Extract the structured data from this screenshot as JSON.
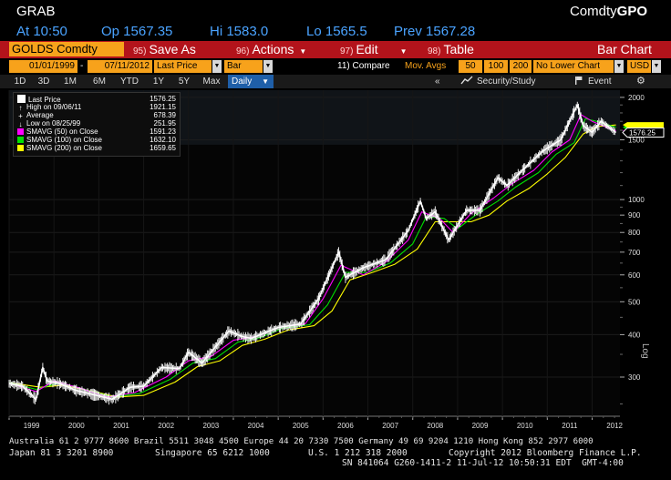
{
  "header": {
    "screen_code": "GRAB",
    "brand_plain": "Comdty",
    "brand_bold": "GPO",
    "quote": {
      "time": "At 10:50",
      "open": "Op 1567.35",
      "high": "Hi 1583.0",
      "low": "Lo 1565.5",
      "prev": "Prev 1567.28"
    }
  },
  "toolbar": {
    "security": "GOLDS Comdty",
    "buttons": [
      {
        "num": "95)",
        "label": "Save As"
      },
      {
        "num": "96)",
        "label": "Actions",
        "caret": "▼"
      },
      {
        "num": "97)",
        "label": "Edit",
        "caret": "▼"
      },
      {
        "num": "98)",
        "label": "Table"
      }
    ],
    "right_label": "Bar Chart"
  },
  "params": {
    "start_date": "01/01/1999",
    "end_date": "07/11/2012",
    "separator": "-",
    "field": "Last Price",
    "chart_style": "Bar",
    "compare": "11) Compare",
    "mov_avgs": "Mov. Avgs",
    "ma1": "50",
    "ma2": "100",
    "ma3": "200",
    "lower_chart": "No Lower Chart",
    "currency": "USD",
    "dd": "▼"
  },
  "periods": {
    "items": [
      "1D",
      "3D",
      "1M",
      "6M",
      "YTD",
      "1Y",
      "5Y",
      "Max"
    ],
    "selected": "Daily",
    "collapse": "«",
    "security_study": "Security/Study",
    "event": "Event",
    "gear": "⚙"
  },
  "legend": {
    "rows": [
      {
        "label": "Last Price",
        "value": "1576.25",
        "color": "#ffffff",
        "icon": "box"
      },
      {
        "label": "High on 09/06/11",
        "value": "1921.15",
        "color": "#ffffff",
        "icon": "high-marker"
      },
      {
        "label": "Average",
        "value": "678.39",
        "color": "#ffffff",
        "icon": "average-marker"
      },
      {
        "label": "Low on 08/25/99",
        "value": "251.95",
        "color": "#ffffff",
        "icon": "low-marker"
      },
      {
        "label": "SMAVG (50) on Close",
        "value": "1591.23",
        "color": "#ff00ff",
        "icon": "swatch"
      },
      {
        "label": "SMAVG (100) on Close",
        "value": "1632.10",
        "color": "#00e000",
        "icon": "swatch"
      },
      {
        "label": "SMAVG (200) on Close",
        "value": "1659.65",
        "color": "#ffff00",
        "icon": "swatch"
      }
    ]
  },
  "chart_data": {
    "type": "line",
    "scale": "log",
    "ylim": [
      230,
      2100
    ],
    "ylabel": "Log",
    "y_ticks_major": [
      300,
      400,
      500,
      600,
      700,
      800,
      900,
      1000,
      1500,
      2000
    ],
    "x_ticks": [
      "1999",
      "2000",
      "2001",
      "2002",
      "2003",
      "2004",
      "2005",
      "2006",
      "2007",
      "2008",
      "2009",
      "2010",
      "2011",
      "2012"
    ],
    "last_price_tag": "1576.25",
    "ma_tag_colors": [
      "#ff00ff",
      "#00e000",
      "#ffff00"
    ],
    "series": [
      {
        "name": "Last Price",
        "color": "#ffffff",
        "x": [
          1999.0,
          1999.3,
          1999.6,
          1999.75,
          1999.85,
          2000.1,
          2000.5,
          2001.0,
          2001.3,
          2001.7,
          2002.0,
          2002.4,
          2002.8,
          2003.0,
          2003.3,
          2003.9,
          2004.2,
          2004.4,
          2005.0,
          2005.5,
          2005.9,
          2006.35,
          2006.5,
          2006.9,
          2007.4,
          2007.9,
          2008.17,
          2008.3,
          2008.5,
          2008.8,
          2009.2,
          2009.5,
          2009.9,
          2010.1,
          2010.5,
          2010.9,
          2011.3,
          2011.67,
          2011.8,
          2012.0,
          2012.2,
          2012.53
        ],
        "y": [
          287,
          282,
          258,
          320,
          292,
          288,
          274,
          264,
          258,
          280,
          282,
          320,
          318,
          355,
          330,
          410,
          395,
          390,
          420,
          430,
          510,
          700,
          590,
          630,
          665,
          810,
          990,
          880,
          920,
          760,
          930,
          930,
          1160,
          1100,
          1240,
          1390,
          1500,
          1900,
          1650,
          1580,
          1700,
          1576
        ]
      },
      {
        "name": "SMAVG (50) on Close",
        "color": "#ff00ff",
        "x": [
          1999.0,
          1999.6,
          2000.0,
          2000.6,
          2001.2,
          2001.8,
          2002.5,
          2003.0,
          2003.5,
          2004.0,
          2004.5,
          2005.0,
          2005.6,
          2006.0,
          2006.4,
          2006.9,
          2007.4,
          2007.9,
          2008.2,
          2008.6,
          2008.9,
          2009.3,
          2009.8,
          2010.2,
          2010.7,
          2011.1,
          2011.5,
          2011.75,
          2012.0,
          2012.53
        ],
        "y": [
          288,
          272,
          292,
          278,
          262,
          270,
          300,
          335,
          345,
          385,
          395,
          420,
          430,
          510,
          640,
          600,
          655,
          760,
          920,
          880,
          800,
          910,
          1010,
          1110,
          1220,
          1380,
          1500,
          1780,
          1700,
          1591
        ]
      },
      {
        "name": "SMAVG (100) on Close",
        "color": "#00e000",
        "x": [
          1999.0,
          1999.6,
          2000.1,
          2000.7,
          2001.3,
          2001.9,
          2002.6,
          2003.1,
          2003.6,
          2004.1,
          2004.6,
          2005.1,
          2005.7,
          2006.1,
          2006.5,
          2007.0,
          2007.5,
          2008.0,
          2008.3,
          2008.7,
          2009.0,
          2009.4,
          2009.9,
          2010.3,
          2010.8,
          2011.2,
          2011.6,
          2011.85,
          2012.1,
          2012.53
        ],
        "y": [
          289,
          276,
          288,
          276,
          262,
          268,
          296,
          330,
          340,
          380,
          392,
          418,
          428,
          490,
          610,
          610,
          650,
          740,
          890,
          880,
          820,
          900,
          990,
          1090,
          1200,
          1360,
          1470,
          1730,
          1700,
          1632
        ]
      },
      {
        "name": "SMAVG (200) on Close",
        "color": "#ffff00",
        "x": [
          1999.0,
          1999.7,
          2000.2,
          2000.8,
          2001.4,
          2002.0,
          2002.7,
          2003.2,
          2003.7,
          2004.2,
          2004.7,
          2005.2,
          2005.8,
          2006.2,
          2006.6,
          2007.1,
          2007.6,
          2008.1,
          2008.5,
          2008.9,
          2009.3,
          2009.7,
          2010.1,
          2010.6,
          2011.0,
          2011.4,
          2011.8,
          2012.1,
          2012.53
        ],
        "y": [
          289,
          280,
          284,
          274,
          262,
          265,
          290,
          322,
          335,
          372,
          388,
          412,
          425,
          470,
          580,
          610,
          645,
          715,
          860,
          860,
          860,
          900,
          990,
          1080,
          1190,
          1330,
          1560,
          1640,
          1659
        ]
      }
    ]
  },
  "bottom": {
    "line1": "Australia 61 2 9777 8600 Brazil 5511 3048 4500 Europe 44 20 7330 7500 Germany 49 69 9204 1210 Hong Kong 852 2977 6000",
    "line2a": "Japan 81 3 3201 8900",
    "line2b": "Singapore 65 6212 1000",
    "line2c": "U.S. 1 212 318 2000",
    "line2d": "Copyright 2012 Bloomberg Finance L.P.",
    "line3": "SN 841064 G260-1411-2 11-Jul-12 10:50:31 EDT  GMT-4:00"
  }
}
